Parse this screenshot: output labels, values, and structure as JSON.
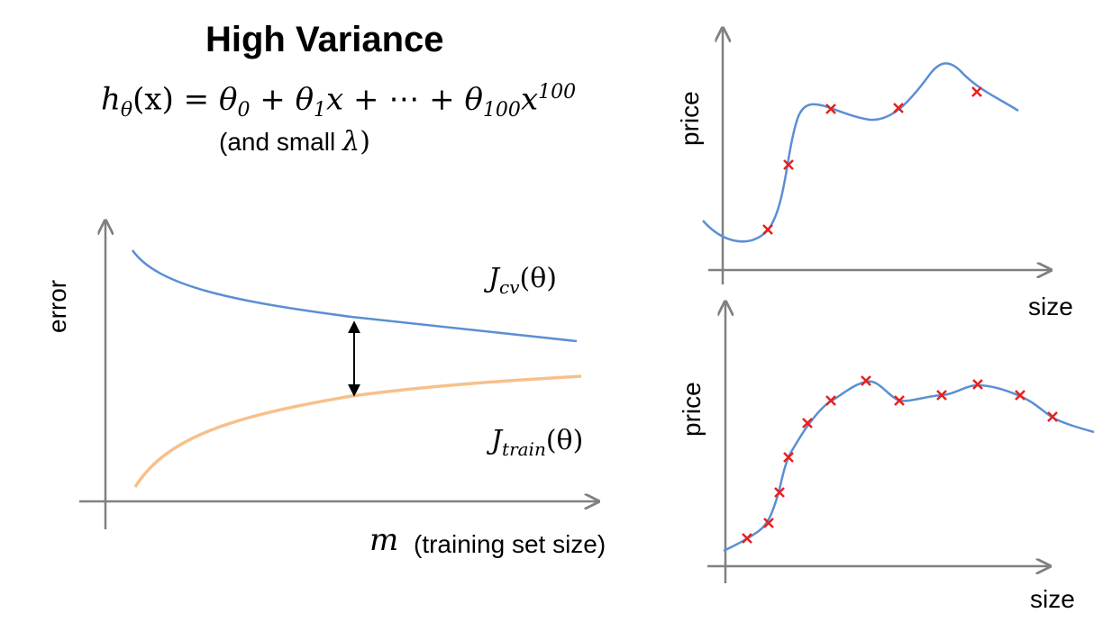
{
  "title": "High Variance",
  "formula": {
    "lhs_h": "h",
    "lhs_sub": "θ",
    "lhs_arg": "(x) = ",
    "t0": "θ",
    "t0_sub": "0",
    "plus1": " + ",
    "t1": "θ",
    "t1_sub": "1",
    "t1_x": "x",
    "plus2": " + ⋯ + ",
    "t100": "θ",
    "t100_sub": "100",
    "t100_x": "x",
    "t100_sup": "100"
  },
  "note": {
    "prefix": "(and small",
    "lambda": "λ",
    "suffix": ")"
  },
  "learning_curve": {
    "ylabel": "error",
    "xlabel_symbol": "m",
    "xlabel_text": "(training set size)",
    "cv_label": {
      "J": "J",
      "sub": "cv",
      "arg": "(θ)"
    },
    "train_label": {
      "J": "J",
      "sub": "train",
      "arg": "(θ)"
    },
    "colors": {
      "cv": "#5b8fd4",
      "train": "#f7c08a",
      "axis": "#808080"
    }
  },
  "plot_top": {
    "ylabel": "price",
    "xlabel": "size"
  },
  "plot_bottom": {
    "ylabel": "price",
    "xlabel": "size"
  },
  "marker_color": "#e8201c",
  "curve_color": "#5b8fd4"
}
